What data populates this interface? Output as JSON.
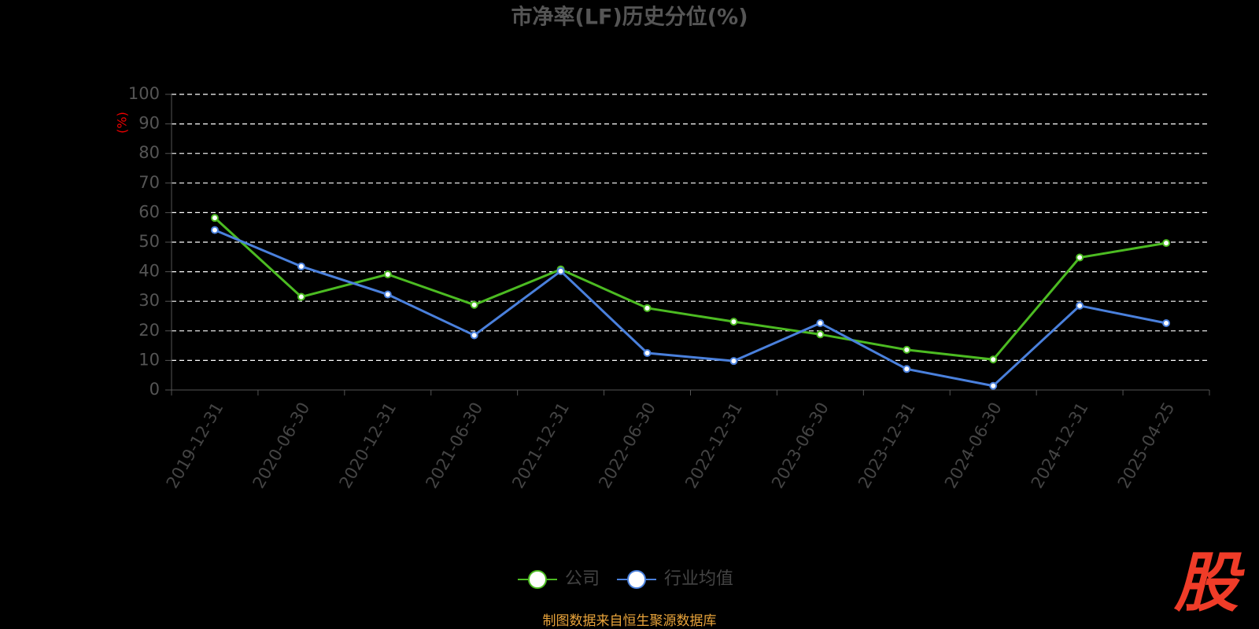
{
  "chart_data": {
    "type": "line",
    "title": "市净率(LF)历史分位(%)",
    "y_label": "(%)",
    "categories": [
      "2019-12-31",
      "2020-06-30",
      "2020-12-31",
      "2021-06-30",
      "2021-12-31",
      "2022-06-30",
      "2022-12-31",
      "2023-06-30",
      "2023-12-31",
      "2024-06-30",
      "2024-12-31",
      "2025-04-25"
    ],
    "series": [
      {
        "name": "公司",
        "color": "#4cbb22",
        "values": [
          58.2,
          31.5,
          39.1,
          28.8,
          40.8,
          27.7,
          23.1,
          18.8,
          13.6,
          10.3,
          44.8,
          49.7
        ]
      },
      {
        "name": "行业均值",
        "color": "#4a80dc",
        "values": [
          54.1,
          41.8,
          32.3,
          18.5,
          40.2,
          12.5,
          9.8,
          22.6,
          7.1,
          1.4,
          28.5,
          22.6
        ]
      }
    ],
    "ylim": [
      0,
      100
    ],
    "yticks": [
      0,
      10,
      20,
      30,
      40,
      50,
      60,
      70,
      80,
      90,
      100
    ],
    "grid": true,
    "legend": "bottom",
    "source": "制图数据来自恒生聚源数据库",
    "watermark": "股"
  }
}
